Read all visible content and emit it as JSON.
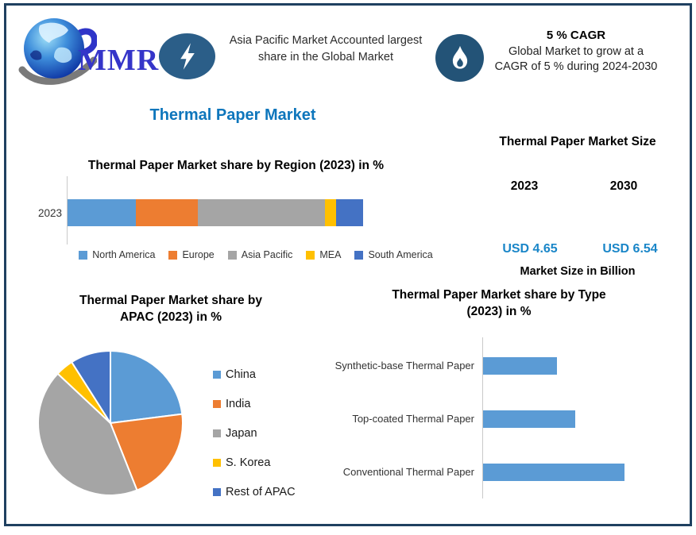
{
  "brand": {
    "logo_text": "MMR"
  },
  "header": {
    "highlight_text": "Asia Pacific Market Accounted largest share in the Global Market",
    "cagr_title": "5 % CAGR",
    "cagr_text": "Global Market to grow at a CAGR of 5 % during 2024-2030"
  },
  "main_title": "Thermal Paper Market",
  "market_size_panel": {
    "title": "Thermal Paper Market Size",
    "year_left": "2023",
    "year_right": "2030",
    "value_left": "USD 4.65",
    "value_right": "USD 6.54",
    "caption": "Market Size in Billion"
  },
  "chart_data": [
    {
      "type": "bar",
      "variant": "horizontal-stacked",
      "title": "Thermal Paper Market share by Region (2023) in %",
      "categories": [
        "2023"
      ],
      "series": [
        {
          "name": "North America",
          "values": [
            23
          ],
          "color": "#5B9BD5"
        },
        {
          "name": "Europe",
          "values": [
            21
          ],
          "color": "#ED7D31"
        },
        {
          "name": "Asia Pacific",
          "values": [
            43
          ],
          "color": "#A5A5A5"
        },
        {
          "name": "MEA",
          "values": [
            4
          ],
          "color": "#FFC000"
        },
        {
          "name": "South America",
          "values": [
            9
          ],
          "color": "#4472C4"
        }
      ],
      "unit": "%",
      "xlim": [
        0,
        100
      ],
      "legend_position": "bottom",
      "grid": false
    },
    {
      "type": "pie",
      "title": "Thermal Paper Market share by\nAPAC (2023) in %",
      "labels": [
        "China",
        "India",
        "Japan",
        "S. Korea",
        "Rest of APAC"
      ],
      "values": [
        23,
        21,
        43,
        4,
        9
      ],
      "colors": [
        "#5B9BD5",
        "#ED7D31",
        "#A5A5A5",
        "#FFC000",
        "#4472C4"
      ],
      "unit": "%",
      "start_angle_deg_from_top": 0,
      "direction": "clockwise",
      "legend_position": "right"
    },
    {
      "type": "bar",
      "variant": "horizontal",
      "title": "Thermal Paper Market share by Type\n(2023) in %",
      "categories": [
        "Synthetic-base Thermal Paper",
        "Top-coated Thermal Paper",
        "Conventional Thermal Paper"
      ],
      "values": [
        24,
        30,
        46
      ],
      "color": "#5B9BD5",
      "unit": "%",
      "grid": false
    }
  ],
  "colors": {
    "frame_border": "#1F4060",
    "title_blue": "#0E76BC",
    "value_blue": "#1A86C8",
    "badge_bolt_bg": "#2B5E88",
    "badge_flame_bg": "#235377",
    "logo_text_color": "#3535C9",
    "bar_blue": "#5B9BD5"
  }
}
